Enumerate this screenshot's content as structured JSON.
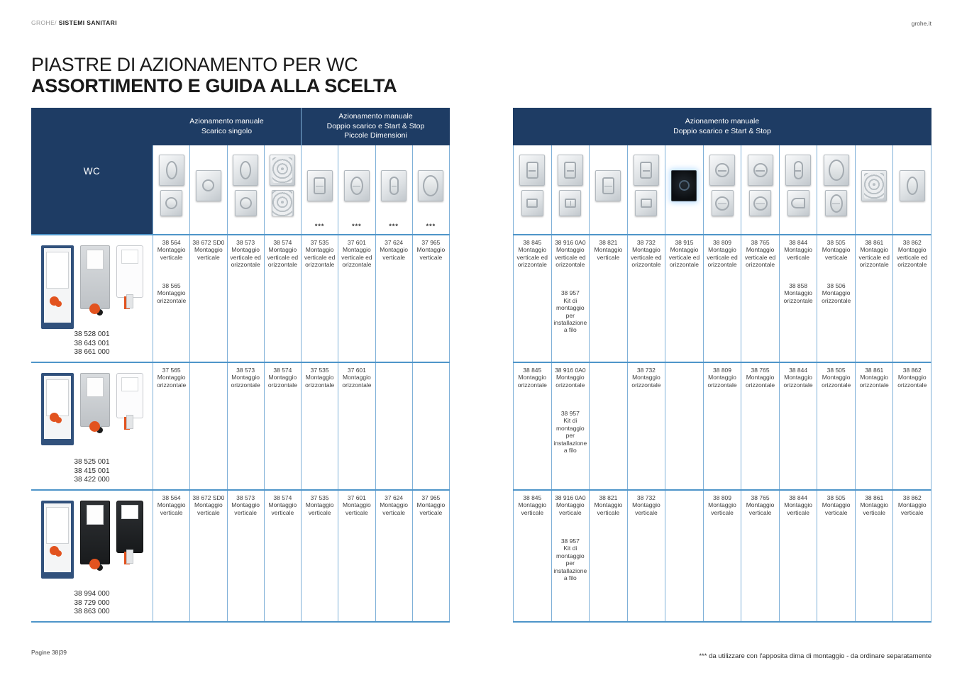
{
  "page": {
    "brand_prefix": "GROHE/ ",
    "brand_section": "SISTEMI SANITARI",
    "website": "grohe.it",
    "title_line1": "PIASTRE DI AZIONAMENTO PER WC",
    "title_line2": "ASSORTIMENTO E GUIDA ALLA SCELTA",
    "footer_left": "Pagine 38|39",
    "footnote": "*** da utilizzare con l'apposita dima di montaggio - da ordinare separatamente"
  },
  "colors": {
    "navy": "#1e3c64",
    "border_blue": "#7fb0d8",
    "divider_blue": "#4e95c9",
    "accent_orange": "#e2531f",
    "cell_text": "#3c3c3c"
  },
  "left_table": {
    "corner_label": "WC",
    "groups": [
      {
        "label": "Azionamento manuale\nScarico singolo",
        "span": 4
      },
      {
        "label": "Azionamento manuale\nDoppio scarico e Start & Stop\nPiccole Dimensioni",
        "span": 4
      }
    ],
    "columns": [
      {
        "plates": [
          "oval",
          "round"
        ],
        "mark": ""
      },
      {
        "plates": [
          "round"
        ],
        "mark": ""
      },
      {
        "plates": [
          "oval",
          "round"
        ],
        "mark": ""
      },
      {
        "plates": [
          "swirl",
          "swirl"
        ],
        "mark": ""
      },
      {
        "plates": [
          "rect"
        ],
        "mark": "***"
      },
      {
        "plates": [
          "split-oval"
        ],
        "mark": "***"
      },
      {
        "plates": [
          "pill"
        ],
        "mark": "***"
      },
      {
        "plates": [
          "oval-large"
        ],
        "mark": "***"
      }
    ],
    "rows": [
      {
        "product_codes": [
          "38 528 001",
          "38 643 001",
          "38 661 000"
        ],
        "product_images": [
          "frame",
          "module",
          "tank"
        ],
        "cells": [
          [
            {
              "code": "38 564",
              "note": "Montaggio verticale"
            },
            {
              "code": "38 565",
              "note": "Montaggio orizzontale"
            }
          ],
          [
            {
              "code": "38 672 SD0",
              "note": "Montaggio verticale"
            }
          ],
          [
            {
              "code": "38 573",
              "note": "Montaggio verticale ed orizzontale"
            }
          ],
          [
            {
              "code": "38 574",
              "note": "Montaggio verticale ed orizzontale"
            }
          ],
          [
            {
              "code": "37 535",
              "note": "Montaggio verticale ed orizzontale"
            }
          ],
          [
            {
              "code": "37 601",
              "note": "Montaggio verticale ed orizzontale"
            }
          ],
          [
            {
              "code": "37 624",
              "note": "Montaggio verticale"
            }
          ],
          [
            {
              "code": "37 965",
              "note": "Montaggio verticale"
            }
          ]
        ]
      },
      {
        "product_codes": [
          "38 525 001",
          "38 415 001",
          "38 422 000"
        ],
        "product_images": [
          "frame-sm",
          "module-sm",
          "tank-sm"
        ],
        "cells": [
          [
            {
              "code": "37 565",
              "note": "Montaggio orizzontale"
            }
          ],
          [],
          [
            {
              "code": "38 573",
              "note": "Montaggio orizzontale"
            }
          ],
          [
            {
              "code": "38 574",
              "note": "Montaggio orizzontale"
            }
          ],
          [
            {
              "code": "37 535",
              "note": "Montaggio orizzontale"
            }
          ],
          [
            {
              "code": "37 601",
              "note": "Montaggio orizzontale"
            }
          ],
          [],
          []
        ]
      },
      {
        "product_codes": [
          "38 994 000",
          "38 729 000",
          "38 863 000"
        ],
        "product_images": [
          "frame-p",
          "module-dark",
          "tank-dark"
        ],
        "cells": [
          [
            {
              "code": "38 564",
              "note": "Montaggio verticale"
            }
          ],
          [
            {
              "code": "38 672 SD0",
              "note": "Montaggio verticale"
            }
          ],
          [
            {
              "code": "38 573",
              "note": "Montaggio verticale"
            }
          ],
          [
            {
              "code": "38 574",
              "note": "Montaggio verticale"
            }
          ],
          [
            {
              "code": "37 535",
              "note": "Montaggio verticale"
            }
          ],
          [
            {
              "code": "37 601",
              "note": "Montaggio verticale"
            }
          ],
          [
            {
              "code": "37 624",
              "note": "Montaggio verticale"
            }
          ],
          [
            {
              "code": "37 965",
              "note": "Montaggio verticale"
            }
          ]
        ]
      }
    ]
  },
  "right_table": {
    "groups": [
      {
        "label": "Azionamento manuale\nDoppio scarico e Start & Stop",
        "span": 11
      }
    ],
    "columns": [
      {
        "plates": [
          "rect",
          "square"
        ],
        "mark": ""
      },
      {
        "plates": [
          "rect",
          "square2"
        ],
        "mark": ""
      },
      {
        "plates": [
          "rect"
        ],
        "mark": ""
      },
      {
        "plates": [
          "rect",
          "square"
        ],
        "mark": ""
      },
      {
        "plates": [
          "black"
        ],
        "mark": ""
      },
      {
        "plates": [
          "split-round",
          "split-round"
        ],
        "mark": ""
      },
      {
        "plates": [
          "split-round",
          "split-round"
        ],
        "mark": ""
      },
      {
        "plates": [
          "pill",
          "arc"
        ],
        "mark": ""
      },
      {
        "plates": [
          "oval-large",
          "split-oval"
        ],
        "mark": ""
      },
      {
        "plates": [
          "swirl"
        ],
        "mark": ""
      },
      {
        "plates": [
          "oval"
        ],
        "mark": ""
      }
    ],
    "rows": [
      {
        "cells": [
          [
            {
              "code": "38 845",
              "note": "Montaggio verticale ed orizzontale"
            }
          ],
          [
            {
              "code": "38 916 0A0",
              "note": "Montaggio verticale ed orizzontale"
            },
            {
              "code": "38 957",
              "note": "Kit di montaggio per installazione a filo"
            }
          ],
          [
            {
              "code": "38 821",
              "note": "Montaggio verticale"
            }
          ],
          [
            {
              "code": "38 732",
              "note": "Montaggio verticale ed orizzontale"
            }
          ],
          [
            {
              "code": "38 915",
              "note": "Montaggio verticale ed orizzontale"
            }
          ],
          [
            {
              "code": "38 809",
              "note": "Montaggio verticale ed orizzontale"
            }
          ],
          [
            {
              "code": "38 765",
              "note": "Montaggio verticale ed orizzontale"
            }
          ],
          [
            {
              "code": "38 844",
              "note": "Montaggio verticale"
            },
            {
              "code": "38 858",
              "note": "Montaggio orizzontale"
            }
          ],
          [
            {
              "code": "38 505",
              "note": "Montaggio verticale"
            },
            {
              "code": "38 506",
              "note": "Montaggio orizzontale"
            }
          ],
          [
            {
              "code": "38 861",
              "note": "Montaggio verticale ed orizzontale"
            }
          ],
          [
            {
              "code": "38 862",
              "note": "Montaggio verticale ed orizzontale"
            }
          ]
        ]
      },
      {
        "cells": [
          [
            {
              "code": "38 845",
              "note": "Montaggio orizzontale"
            }
          ],
          [
            {
              "code": "38 916 0A0",
              "note": "Montaggio orizzontale"
            },
            {
              "code": "38 957",
              "note": "Kit di montaggio per installazione a filo"
            }
          ],
          [],
          [
            {
              "code": "38 732",
              "note": "Montaggio orizzontale"
            }
          ],
          [],
          [
            {
              "code": "38 809",
              "note": "Montaggio orizzontale"
            }
          ],
          [
            {
              "code": "38 765",
              "note": "Montaggio orizzontale"
            }
          ],
          [
            {
              "code": "38 844",
              "note": "Montaggio orizzontale"
            }
          ],
          [
            {
              "code": "38 505",
              "note": "Montaggio orizzontale"
            }
          ],
          [
            {
              "code": "38 861",
              "note": "Montaggio orizzontale"
            }
          ],
          [
            {
              "code": "38 862",
              "note": "Montaggio orizzontale"
            }
          ]
        ]
      },
      {
        "cells": [
          [
            {
              "code": "38 845",
              "note": "Montaggio verticale"
            }
          ],
          [
            {
              "code": "38 916 0A0",
              "note": "Montaggio verticale"
            },
            {
              "code": "38 957",
              "note": "Kit di montaggio per installazione a filo"
            }
          ],
          [
            {
              "code": "38 821",
              "note": "Montaggio verticale"
            }
          ],
          [
            {
              "code": "38 732",
              "note": "Montaggio verticale"
            }
          ],
          [],
          [
            {
              "code": "38 809",
              "note": "Montaggio verticale"
            }
          ],
          [
            {
              "code": "38 765",
              "note": "Montaggio verticale"
            }
          ],
          [
            {
              "code": "38 844",
              "note": "Montaggio verticale"
            }
          ],
          [
            {
              "code": "38 505",
              "note": "Montaggio verticale"
            }
          ],
          [
            {
              "code": "38 861",
              "note": "Montaggio verticale"
            }
          ],
          [
            {
              "code": "38 862",
              "note": "Montaggio verticale"
            }
          ]
        ]
      }
    ]
  }
}
